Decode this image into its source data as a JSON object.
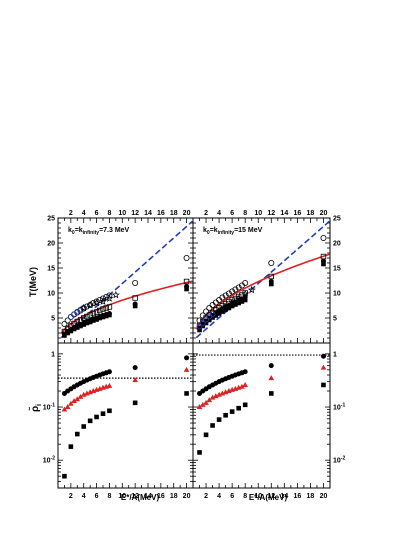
{
  "chart_data": [
    {
      "type": "scatter",
      "panel": "top-left",
      "annotation": "k_0=k_infinity=7.3 MeV",
      "annotation_parts": {
        "k": "k",
        "sub0": "0",
        "eq": "=k",
        "subinf": "infinity",
        "val": "=7.3 MeV"
      },
      "ylabel": "T(MeV)",
      "xlim": [
        0,
        21
      ],
      "ylim": [
        0,
        25
      ],
      "yscale": "linear",
      "x_ticklabels": [
        "2",
        "4",
        "6",
        "8",
        "10",
        "12",
        "14",
        "16",
        "18",
        "20"
      ],
      "y_ticklabels": [
        "5",
        "10",
        "15",
        "20",
        "25"
      ],
      "series": [
        {
          "marker": "open-circle",
          "color": "#000000",
          "x": [
            1,
            1.5,
            2,
            2.5,
            3,
            3.5,
            4,
            4.5,
            5,
            5.5,
            6,
            6.5,
            7,
            7.5,
            8,
            12,
            20
          ],
          "y": [
            3.8,
            4.5,
            5.2,
            5.7,
            6.1,
            6.5,
            6.9,
            7.3,
            7.6,
            8.0,
            8.3,
            8.6,
            8.9,
            9.2,
            9.5,
            12.0,
            17.0
          ]
        },
        {
          "marker": "open-square",
          "color": "#000000",
          "x": [
            1,
            1.5,
            2,
            2.5,
            3,
            3.5,
            4,
            4.5,
            5,
            5.5,
            6,
            6.5,
            7,
            7.5,
            8,
            12,
            20
          ],
          "y": [
            2.3,
            2.9,
            3.4,
            3.9,
            4.3,
            4.6,
            5.0,
            5.3,
            5.6,
            5.9,
            6.2,
            6.5,
            6.8,
            7.0,
            7.2,
            9.0,
            12.3
          ]
        },
        {
          "marker": "filled-circle",
          "color": "#000000",
          "x": [
            1,
            1.5,
            2,
            2.5,
            3,
            3.5,
            4,
            4.5,
            5,
            5.5,
            6,
            6.5,
            7,
            7.5,
            8,
            12,
            20
          ],
          "y": [
            1.8,
            2.3,
            2.7,
            3.1,
            3.4,
            3.7,
            4.0,
            4.3,
            4.5,
            4.8,
            5.0,
            5.3,
            5.5,
            5.7,
            5.9,
            7.8,
            11.3
          ]
        },
        {
          "marker": "filled-square",
          "color": "#000000",
          "x": [
            1,
            1.5,
            2,
            2.5,
            3,
            3.5,
            4,
            4.5,
            5,
            5.5,
            6,
            6.5,
            7,
            7.5,
            8,
            12,
            20
          ],
          "y": [
            1.5,
            2.0,
            2.4,
            2.8,
            3.1,
            3.4,
            3.7,
            4.0,
            4.2,
            4.5,
            4.7,
            5.0,
            5.2,
            5.4,
            5.6,
            7.4,
            10.8
          ]
        },
        {
          "marker": "open-circle-blue",
          "color": "#1f3fbf",
          "x": [
            2,
            2.5,
            3,
            3.5,
            4
          ],
          "y": [
            5.2,
            5.8,
            6.3,
            6.7,
            7.1
          ]
        },
        {
          "marker": "open-star",
          "color": "#000000",
          "x": [
            4,
            5,
            6,
            7,
            8,
            9
          ],
          "y": [
            7.0,
            7.6,
            8.0,
            8.3,
            8.9,
            9.6
          ]
        }
      ],
      "curves": [
        {
          "style": "dashed",
          "color": "#1f3fbf",
          "kind": "linear",
          "slope": 1.14,
          "intercept": 0.5,
          "x_range": [
            0.5,
            21
          ]
        },
        {
          "style": "solid",
          "color": "#e02020",
          "kind": "sqrt",
          "coef": 2.705,
          "x_range": [
            0.5,
            21
          ]
        }
      ]
    },
    {
      "type": "scatter",
      "panel": "top-right",
      "annotation": "k_0=k_infinity=15 MeV",
      "annotation_parts": {
        "k": "k",
        "sub0": "0",
        "eq": "=k",
        "subinf": "infinity",
        "val": "=15 MeV"
      },
      "xlim": [
        0,
        21
      ],
      "ylim": [
        0,
        25
      ],
      "yscale": "linear",
      "x_ticklabels": [
        "2",
        "4",
        "6",
        "8",
        "10",
        "12",
        "14",
        "16",
        "18",
        "20"
      ],
      "y_ticklabels": [
        "5",
        "10",
        "15",
        "20",
        "25"
      ],
      "series": [
        {
          "marker": "open-circle",
          "color": "#000000",
          "x": [
            1,
            1.5,
            2,
            2.5,
            3,
            3.5,
            4,
            4.5,
            5,
            5.5,
            6,
            6.5,
            7,
            7.5,
            8,
            12,
            20
          ],
          "y": [
            4.5,
            5.5,
            6.3,
            7.0,
            7.6,
            8.1,
            8.6,
            9.1,
            9.5,
            9.9,
            10.3,
            10.7,
            11.1,
            11.5,
            12.0,
            16.0,
            21.0
          ]
        },
        {
          "marker": "open-square",
          "color": "#000000",
          "x": [
            1,
            1.5,
            2,
            2.5,
            3,
            3.5,
            4,
            4.5,
            5,
            5.5,
            6,
            6.5,
            7,
            7.5,
            8,
            12,
            20
          ],
          "y": [
            3.5,
            4.3,
            5.0,
            5.6,
            6.1,
            6.6,
            7.0,
            7.4,
            7.8,
            8.2,
            8.6,
            8.9,
            9.3,
            9.6,
            10.0,
            13.3,
            17.3
          ]
        },
        {
          "marker": "filled-circle",
          "color": "#000000",
          "x": [
            1,
            1.5,
            2,
            2.5,
            3,
            3.5,
            4,
            4.5,
            5,
            5.5,
            6,
            6.5,
            7,
            7.5,
            8,
            12,
            20
          ],
          "y": [
            3.0,
            3.8,
            4.4,
            5.0,
            5.5,
            6.0,
            6.4,
            6.8,
            7.2,
            7.5,
            7.9,
            8.2,
            8.5,
            8.8,
            9.2,
            12.3,
            16.4
          ]
        },
        {
          "marker": "filled-square",
          "color": "#000000",
          "x": [
            1,
            1.5,
            2,
            2.5,
            3,
            3.5,
            4,
            4.5,
            5,
            5.5,
            6,
            6.5,
            7,
            7.5,
            8,
            12,
            20
          ],
          "y": [
            2.6,
            3.4,
            4.0,
            4.6,
            5.1,
            5.5,
            5.9,
            6.3,
            6.7,
            7.0,
            7.4,
            7.7,
            8.0,
            8.3,
            8.6,
            11.8,
            15.8
          ]
        },
        {
          "marker": "open-circle-blue",
          "color": "#1f3fbf",
          "x": [
            1,
            1.5,
            2,
            2.5,
            3
          ],
          "y": [
            3.3,
            4.0,
            4.7,
            5.3,
            5.8
          ]
        },
        {
          "marker": "open-star",
          "color": "#000000",
          "x": [
            4,
            5,
            6,
            7,
            8,
            9
          ],
          "y": [
            6.3,
            7.2,
            8.1,
            8.8,
            9.8,
            10.6
          ]
        }
      ],
      "curves": [
        {
          "style": "dashed",
          "color": "#1f3fbf",
          "kind": "linear",
          "slope": 1.14,
          "intercept": 0.5,
          "x_range": [
            0.5,
            21
          ]
        },
        {
          "style": "solid",
          "color": "#e02020",
          "kind": "sqrt",
          "coef": 3.88,
          "x_range": [
            0.5,
            21
          ]
        }
      ]
    },
    {
      "type": "scatter",
      "panel": "bottom-left",
      "xlabel": "E*/A(MeV)",
      "ylabel": "rho_i",
      "xlim": [
        0,
        21
      ],
      "ylim": [
        0.003,
        1.6
      ],
      "yscale": "log",
      "x_ticklabels": [
        "2",
        "4",
        "6",
        "8",
        "10",
        "12",
        "14",
        "16",
        "18",
        "20"
      ],
      "y_ticklabels": [
        "10^-2",
        "10^-1",
        "1"
      ],
      "hline": {
        "y": 0.35,
        "style": "dotted"
      },
      "series": [
        {
          "marker": "filled-circle",
          "color": "#000000",
          "x": [
            1,
            1.5,
            2,
            2.5,
            3,
            3.5,
            4,
            4.5,
            5,
            5.5,
            6,
            6.5,
            7,
            7.5,
            8,
            12,
            20
          ],
          "y": [
            0.18,
            0.2,
            0.22,
            0.24,
            0.26,
            0.28,
            0.3,
            0.32,
            0.34,
            0.36,
            0.38,
            0.4,
            0.42,
            0.44,
            0.46,
            0.55,
            0.84
          ]
        },
        {
          "marker": "filled-triangle",
          "color": "#e02020",
          "x": [
            1,
            1.5,
            2,
            2.5,
            3,
            3.5,
            4,
            4.5,
            5,
            5.5,
            6,
            6.5,
            7,
            7.5,
            8,
            12,
            20
          ],
          "y": [
            0.09,
            0.1,
            0.115,
            0.13,
            0.14,
            0.155,
            0.17,
            0.18,
            0.19,
            0.2,
            0.21,
            0.22,
            0.23,
            0.24,
            0.25,
            0.32,
            0.5
          ]
        },
        {
          "marker": "filled-square",
          "color": "#000000",
          "x": [
            1,
            2,
            3,
            4,
            5,
            6,
            7,
            8,
            12,
            20
          ],
          "y": [
            0.005,
            0.018,
            0.031,
            0.043,
            0.055,
            0.065,
            0.075,
            0.085,
            0.12,
            0.18
          ]
        }
      ]
    },
    {
      "type": "scatter",
      "panel": "bottom-right",
      "xlabel": "E*/A(MeV)",
      "xlim": [
        0,
        21
      ],
      "ylim": [
        0.003,
        1.6
      ],
      "yscale": "log",
      "x_ticklabels": [
        "2",
        "4",
        "6",
        "8",
        "10",
        "12",
        "14",
        "16",
        "18",
        "20"
      ],
      "y_ticklabels": [
        "10^-2",
        "10^-1",
        "1"
      ],
      "hline": {
        "y": 0.95,
        "style": "dotted"
      },
      "series": [
        {
          "marker": "filled-circle",
          "color": "#000000",
          "x": [
            1,
            1.5,
            2,
            2.5,
            3,
            3.5,
            4,
            4.5,
            5,
            5.5,
            6,
            6.5,
            7,
            7.5,
            8,
            12,
            20
          ],
          "y": [
            0.18,
            0.2,
            0.22,
            0.24,
            0.26,
            0.28,
            0.3,
            0.32,
            0.34,
            0.36,
            0.38,
            0.4,
            0.42,
            0.44,
            0.46,
            0.6,
            0.9
          ]
        },
        {
          "marker": "filled-triangle",
          "color": "#e02020",
          "x": [
            1,
            1.5,
            2,
            2.5,
            3,
            3.5,
            4,
            4.5,
            5,
            5.5,
            6,
            6.5,
            7,
            7.5,
            8,
            12,
            20
          ],
          "y": [
            0.1,
            0.11,
            0.12,
            0.135,
            0.15,
            0.16,
            0.17,
            0.18,
            0.19,
            0.2,
            0.21,
            0.22,
            0.23,
            0.24,
            0.26,
            0.35,
            0.55
          ]
        },
        {
          "marker": "filled-square",
          "color": "#000000",
          "x": [
            1,
            2,
            3,
            4,
            5,
            6,
            7,
            8,
            12,
            20
          ],
          "y": [
            0.014,
            0.03,
            0.045,
            0.058,
            0.07,
            0.082,
            0.095,
            0.11,
            0.18,
            0.26
          ]
        }
      ]
    }
  ]
}
